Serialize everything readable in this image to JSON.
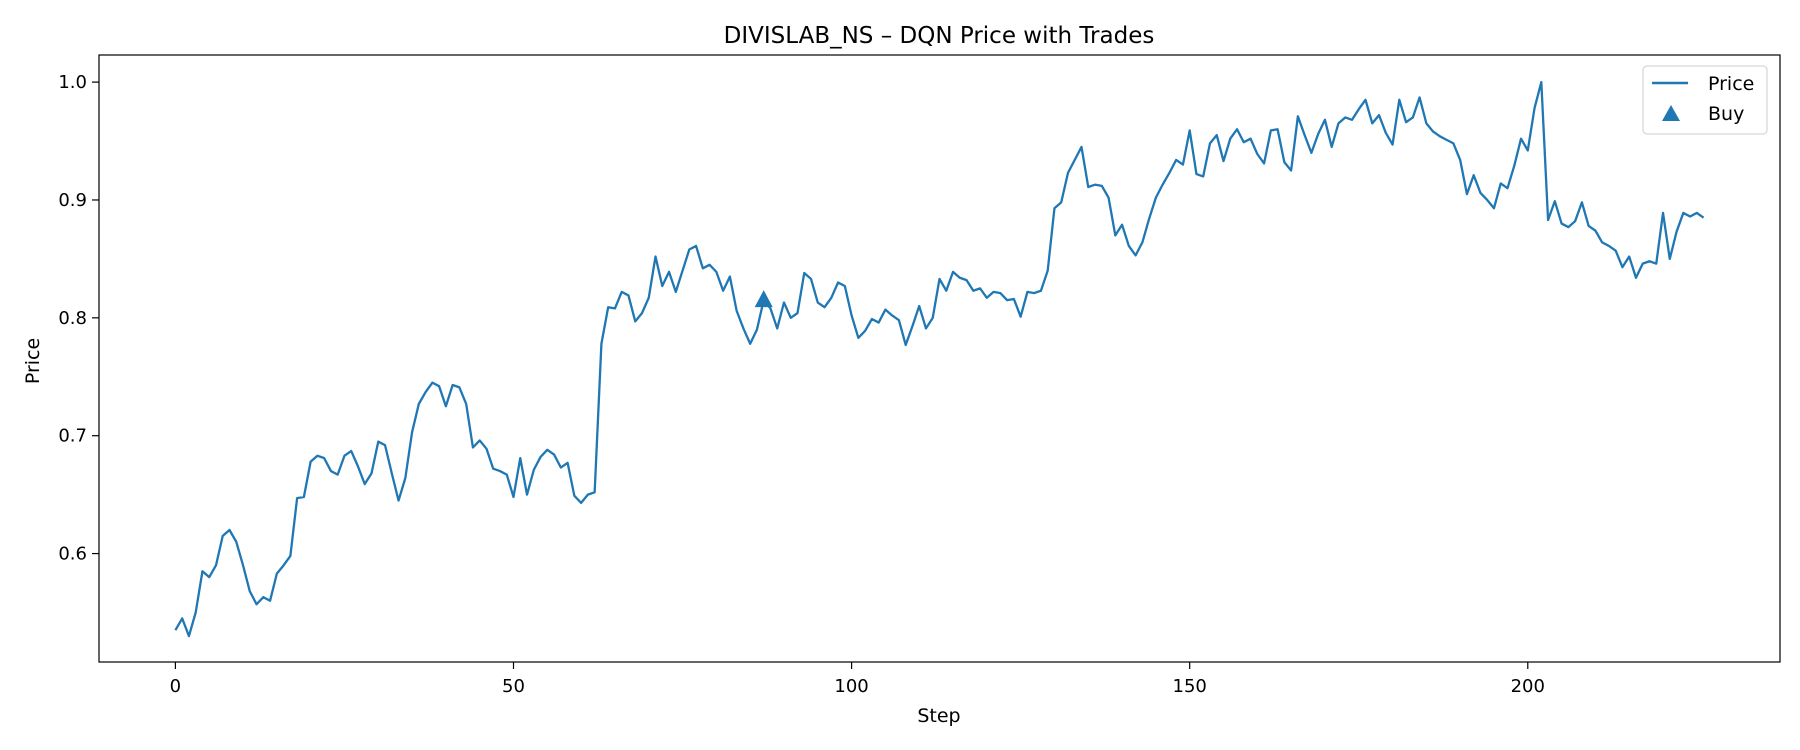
{
  "chart_data": {
    "type": "line",
    "title": "DIVISLAB_NS – DQN Price with Trades",
    "xlabel": "Step",
    "ylabel": "Price",
    "xlim": [
      -11.3,
      237.3
    ],
    "ylim": [
      0.508,
      1.023
    ],
    "xticks": [
      0,
      50,
      100,
      150,
      200
    ],
    "yticks": [
      0.6,
      0.7,
      0.8,
      0.9,
      1.0
    ],
    "grid": false,
    "legend_position": "top-right",
    "series": [
      {
        "name": "Price",
        "color": "#1f77b4",
        "marker": "line",
        "x_start": 0,
        "values": [
          0.535,
          0.545,
          0.53,
          0.55,
          0.585,
          0.58,
          0.59,
          0.615,
          0.62,
          0.61,
          0.59,
          0.568,
          0.557,
          0.563,
          0.56,
          0.583,
          0.59,
          0.598,
          0.647,
          0.648,
          0.678,
          0.683,
          0.681,
          0.67,
          0.667,
          0.683,
          0.687,
          0.674,
          0.659,
          0.668,
          0.695,
          0.692,
          0.668,
          0.645,
          0.664,
          0.703,
          0.727,
          0.737,
          0.745,
          0.742,
          0.725,
          0.743,
          0.741,
          0.727,
          0.69,
          0.696,
          0.689,
          0.672,
          0.67,
          0.667,
          0.648,
          0.681,
          0.65,
          0.671,
          0.682,
          0.688,
          0.684,
          0.673,
          0.677,
          0.649,
          0.643,
          0.65,
          0.652,
          0.778,
          0.809,
          0.808,
          0.822,
          0.819,
          0.797,
          0.804,
          0.817,
          0.852,
          0.827,
          0.839,
          0.822,
          0.84,
          0.858,
          0.861,
          0.842,
          0.845,
          0.839,
          0.823,
          0.835,
          0.806,
          0.791,
          0.778,
          0.79,
          0.815,
          0.808,
          0.791,
          0.813,
          0.8,
          0.804,
          0.838,
          0.833,
          0.813,
          0.809,
          0.817,
          0.83,
          0.827,
          0.802,
          0.783,
          0.789,
          0.799,
          0.796,
          0.807,
          0.802,
          0.798,
          0.777,
          0.793,
          0.81,
          0.791,
          0.8,
          0.833,
          0.823,
          0.839,
          0.834,
          0.832,
          0.823,
          0.825,
          0.817,
          0.822,
          0.821,
          0.815,
          0.816,
          0.801,
          0.822,
          0.821,
          0.823,
          0.84,
          0.893,
          0.898,
          0.923,
          0.934,
          0.945,
          0.911,
          0.913,
          0.912,
          0.902,
          0.87,
          0.879,
          0.861,
          0.853,
          0.864,
          0.884,
          0.902,
          0.913,
          0.923,
          0.934,
          0.93,
          0.959,
          0.922,
          0.92,
          0.948,
          0.955,
          0.933,
          0.952,
          0.96,
          0.949,
          0.952,
          0.939,
          0.931,
          0.959,
          0.96,
          0.932,
          0.925,
          0.971,
          0.955,
          0.94,
          0.956,
          0.968,
          0.945,
          0.965,
          0.97,
          0.968,
          0.977,
          0.985,
          0.965,
          0.972,
          0.957,
          0.947,
          0.985,
          0.966,
          0.97,
          0.987,
          0.965,
          0.958,
          0.954,
          0.951,
          0.948,
          0.934,
          0.905,
          0.921,
          0.906,
          0.9,
          0.893,
          0.914,
          0.91,
          0.929,
          0.952,
          0.942,
          0.978,
          1.0,
          0.883,
          0.899,
          0.88,
          0.877,
          0.882,
          0.898,
          0.878,
          0.874,
          0.864,
          0.861,
          0.857,
          0.843,
          0.852,
          0.834,
          0.846,
          0.848,
          0.846,
          0.889,
          0.85,
          0.873,
          0.889,
          0.886,
          0.889,
          0.885
        ]
      },
      {
        "name": "Buy",
        "color": "#1f77b4",
        "marker": "triangle-up",
        "points": [
          {
            "x": 87,
            "y": 0.815
          }
        ]
      }
    ]
  }
}
